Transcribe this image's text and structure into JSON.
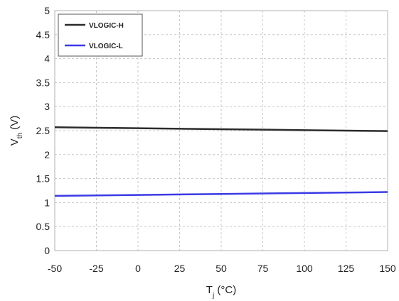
{
  "chart_data": {
    "type": "line",
    "title": "",
    "xlabel": {
      "main": "T",
      "sub": "j",
      "suffix": " (°C)"
    },
    "ylabel": {
      "main": "V",
      "sub": "th",
      "suffix": " (V)"
    },
    "xlim": [
      -50,
      150
    ],
    "ylim": [
      0,
      5
    ],
    "x_ticks": [
      -50,
      -25,
      0,
      25,
      50,
      75,
      100,
      125,
      150
    ],
    "x_tick_labels": [
      "-50",
      "-25",
      "0",
      "25",
      "50",
      "75",
      "100",
      "125",
      "150"
    ],
    "y_ticks": [
      0,
      0.5,
      1,
      1.5,
      2,
      2.5,
      3,
      3.5,
      4,
      4.5,
      5
    ],
    "y_tick_labels": [
      "0",
      "0.5",
      "1",
      "1.5",
      "2",
      "2.5",
      "3",
      "3.5",
      "4",
      "4.5",
      "5"
    ],
    "grid": true,
    "legend_position": "top-left",
    "series": [
      {
        "name": "VLOGIC-H",
        "color": "#2b2b2b",
        "x": [
          -50,
          0,
          50,
          100,
          150
        ],
        "values": [
          2.57,
          2.55,
          2.53,
          2.51,
          2.49
        ]
      },
      {
        "name": "VLOGIC-L",
        "color": "#3a3ae6",
        "x": [
          -50,
          0,
          50,
          100,
          150
        ],
        "values": [
          1.14,
          1.16,
          1.18,
          1.2,
          1.22
        ]
      }
    ]
  }
}
